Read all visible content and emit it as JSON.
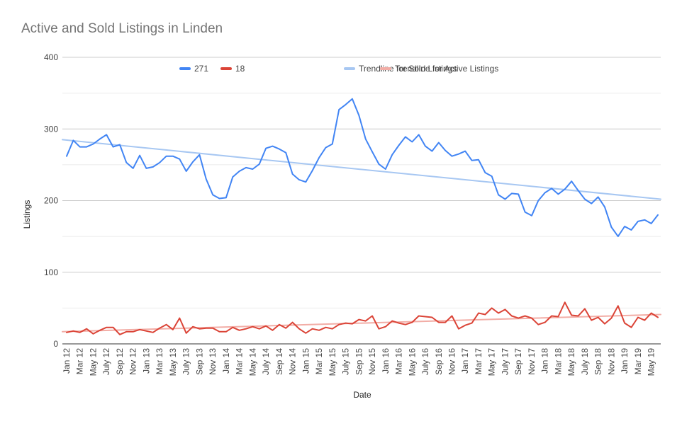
{
  "chart_data": {
    "type": "line",
    "title": "Active and Sold Listings in Linden",
    "xlabel": "Date",
    "ylabel": "Listings",
    "ylim": [
      0,
      400
    ],
    "yticks": [
      0,
      100,
      200,
      300,
      400
    ],
    "grid": true,
    "legend_position": "top",
    "x_tick_labels": [
      "Jan 12",
      "Mar 12",
      "May 12",
      "July 12",
      "Sep 12",
      "Nov 12",
      "Jan 13",
      "Mar 13",
      "May 13",
      "July 13",
      "Sep 13",
      "Nov 13",
      "Jan 14",
      "Mar 14",
      "May 14",
      "July 14",
      "Sep 14",
      "Nov 14",
      "Jan 15",
      "Mar 15",
      "May 15",
      "July 15",
      "Sep 15",
      "Nov 15",
      "Jan 16",
      "Mar 16",
      "May 16",
      "July 16",
      "Sep 16",
      "Nov 16",
      "Jan 17",
      "Mar 17",
      "May 17",
      "July 17",
      "Sep 17",
      "Nov 17",
      "Jan 18",
      "Mar 18",
      "May 18",
      "July 18",
      "Sep 18",
      "Nov 18",
      "Jan 19",
      "Mar 19",
      "May 19"
    ],
    "series": [
      {
        "name": "271",
        "color": "#4285f4",
        "values": [
          262,
          284,
          275,
          275,
          279,
          286,
          292,
          275,
          278,
          253,
          245,
          263,
          245,
          247,
          253,
          262,
          262,
          258,
          241,
          254,
          264,
          230,
          208,
          203,
          204,
          233,
          241,
          246,
          244,
          251,
          273,
          276,
          272,
          267,
          237,
          229,
          226,
          242,
          260,
          274,
          279,
          327,
          334,
          342,
          319,
          286,
          268,
          251,
          244,
          264,
          277,
          289,
          282,
          292,
          276,
          269,
          281,
          270,
          262,
          265,
          269,
          256,
          257,
          239,
          234,
          208,
          202,
          210,
          209,
          184,
          179,
          200,
          211,
          217,
          209,
          216,
          227,
          214,
          202,
          196,
          205,
          191,
          163,
          150,
          164,
          159,
          171,
          173,
          168,
          180
        ]
      },
      {
        "name": "18",
        "color": "#db4437",
        "values": [
          16,
          18,
          16,
          21,
          14,
          19,
          23,
          23,
          13,
          17,
          17,
          20,
          18,
          16,
          22,
          27,
          20,
          36,
          15,
          24,
          21,
          22,
          22,
          17,
          17,
          23,
          19,
          21,
          24,
          21,
          25,
          19,
          27,
          22,
          30,
          21,
          15,
          21,
          19,
          23,
          21,
          27,
          29,
          28,
          34,
          32,
          39,
          21,
          24,
          32,
          29,
          27,
          30,
          39,
          38,
          37,
          30,
          30,
          39,
          21,
          26,
          29,
          43,
          41,
          50,
          43,
          48,
          39,
          36,
          39,
          36,
          27,
          30,
          39,
          38,
          58,
          40,
          39,
          49,
          33,
          37,
          28,
          36,
          53,
          29,
          23,
          37,
          33,
          43,
          37
        ]
      },
      {
        "name": "Trendline for Sold Listings",
        "color": "#a7c7f2",
        "trend": true,
        "values": [
          285,
          202
        ]
      },
      {
        "name": "Trendline for Active Listings",
        "color": "#f2ada6",
        "trend": true,
        "values": [
          17,
          41
        ]
      }
    ]
  }
}
